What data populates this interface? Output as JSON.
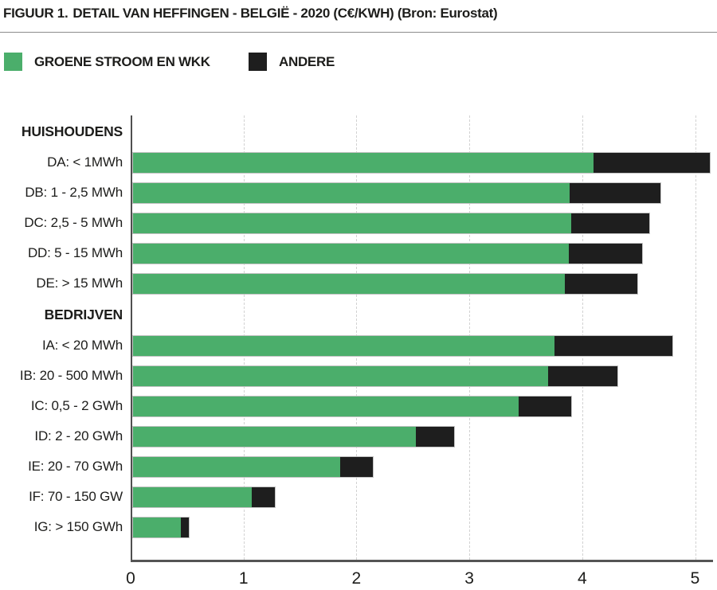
{
  "title": {
    "prefix": "FIGUUR 1.",
    "text": "DETAIL VAN HEFFINGEN - BELGIË - 2020 (C€/KWH) (Bron: Eurostat)"
  },
  "legend": [
    {
      "label": "GROENE STROOM EN WKK",
      "color": "#4bae6b"
    },
    {
      "label": "ANDERE",
      "color": "#1e1e1e"
    }
  ],
  "colors": {
    "title_accent": "#33ab5f",
    "green": "#4bae6b",
    "black": "#1e1e1e",
    "axis": "#4f4f4f",
    "grid": "#d2d2d2",
    "text": "#1d1d1b"
  },
  "chart_data": {
    "type": "bar",
    "orientation": "horizontal",
    "stacked": true,
    "title": "FIGUUR 1. DETAIL VAN HEFFINGEN - BELGIË - 2020 (C€/KWH) (Bron: Eurostat)",
    "xlabel": "C€/KWH",
    "ylabel": "",
    "xlim": [
      0,
      5
    ],
    "xticks": [
      0,
      1,
      2,
      3,
      4,
      5
    ],
    "grid": "vertical-dashed",
    "legend_position": "top",
    "series_names": [
      "GROENE STROOM EN WKK",
      "ANDERE"
    ],
    "rows": [
      {
        "type": "header",
        "label": "HUISHOUDENS"
      },
      {
        "type": "bar",
        "label": "DA: < 1MWh",
        "values": [
          3.95,
          1.0
        ]
      },
      {
        "type": "bar",
        "label": "DB: 1 - 2,5 MWh",
        "values": [
          3.75,
          0.78
        ]
      },
      {
        "type": "bar",
        "label": "DC: 2,5 - 5 MWh",
        "values": [
          3.76,
          0.67
        ]
      },
      {
        "type": "bar",
        "label": "DD: 5 - 15 MWh",
        "values": [
          3.74,
          0.63
        ]
      },
      {
        "type": "bar",
        "label": "DE: > 15 MWh",
        "values": [
          3.71,
          0.62
        ]
      },
      {
        "type": "header",
        "label": "BEDRIJVEN"
      },
      {
        "type": "bar",
        "label": "IA: < 20 MWh",
        "values": [
          3.62,
          1.01
        ]
      },
      {
        "type": "bar",
        "label": "IB: 20 - 500 MWh",
        "values": [
          3.56,
          0.6
        ]
      },
      {
        "type": "bar",
        "label": "IC: 0,5 - 2 GWh",
        "values": [
          3.31,
          0.45
        ]
      },
      {
        "type": "bar",
        "label": "ID: 2 - 20 GWh",
        "values": [
          2.43,
          0.33
        ]
      },
      {
        "type": "bar",
        "label": "IE: 20 - 70 GWh",
        "values": [
          1.78,
          0.28
        ]
      },
      {
        "type": "bar",
        "label": "IF: 70 - 150 GW",
        "values": [
          1.02,
          0.2
        ]
      },
      {
        "type": "bar",
        "label": "IG: > 150 GWh",
        "values": [
          0.41,
          0.07
        ]
      }
    ]
  }
}
